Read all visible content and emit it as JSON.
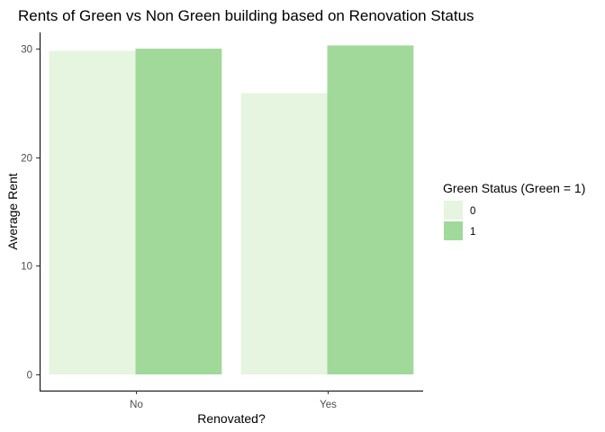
{
  "chart_data": {
    "type": "bar",
    "title": "Rents of Green vs Non Green building based on Renovation Status",
    "xlabel": "Renovated?",
    "ylabel": "Average Rent",
    "categories": [
      "No",
      "Yes"
    ],
    "series": [
      {
        "name": "0",
        "values": [
          29.8,
          25.9
        ],
        "color": "#e5f5e0"
      },
      {
        "name": "1",
        "values": [
          30.0,
          30.3
        ],
        "color": "#a1d99b"
      }
    ],
    "ylim": [
      0,
      31.5
    ],
    "yticks": [
      0,
      10,
      20,
      30
    ],
    "legend": {
      "title": "Green Status (Green = 1)",
      "placement": "right"
    },
    "grid": false
  }
}
